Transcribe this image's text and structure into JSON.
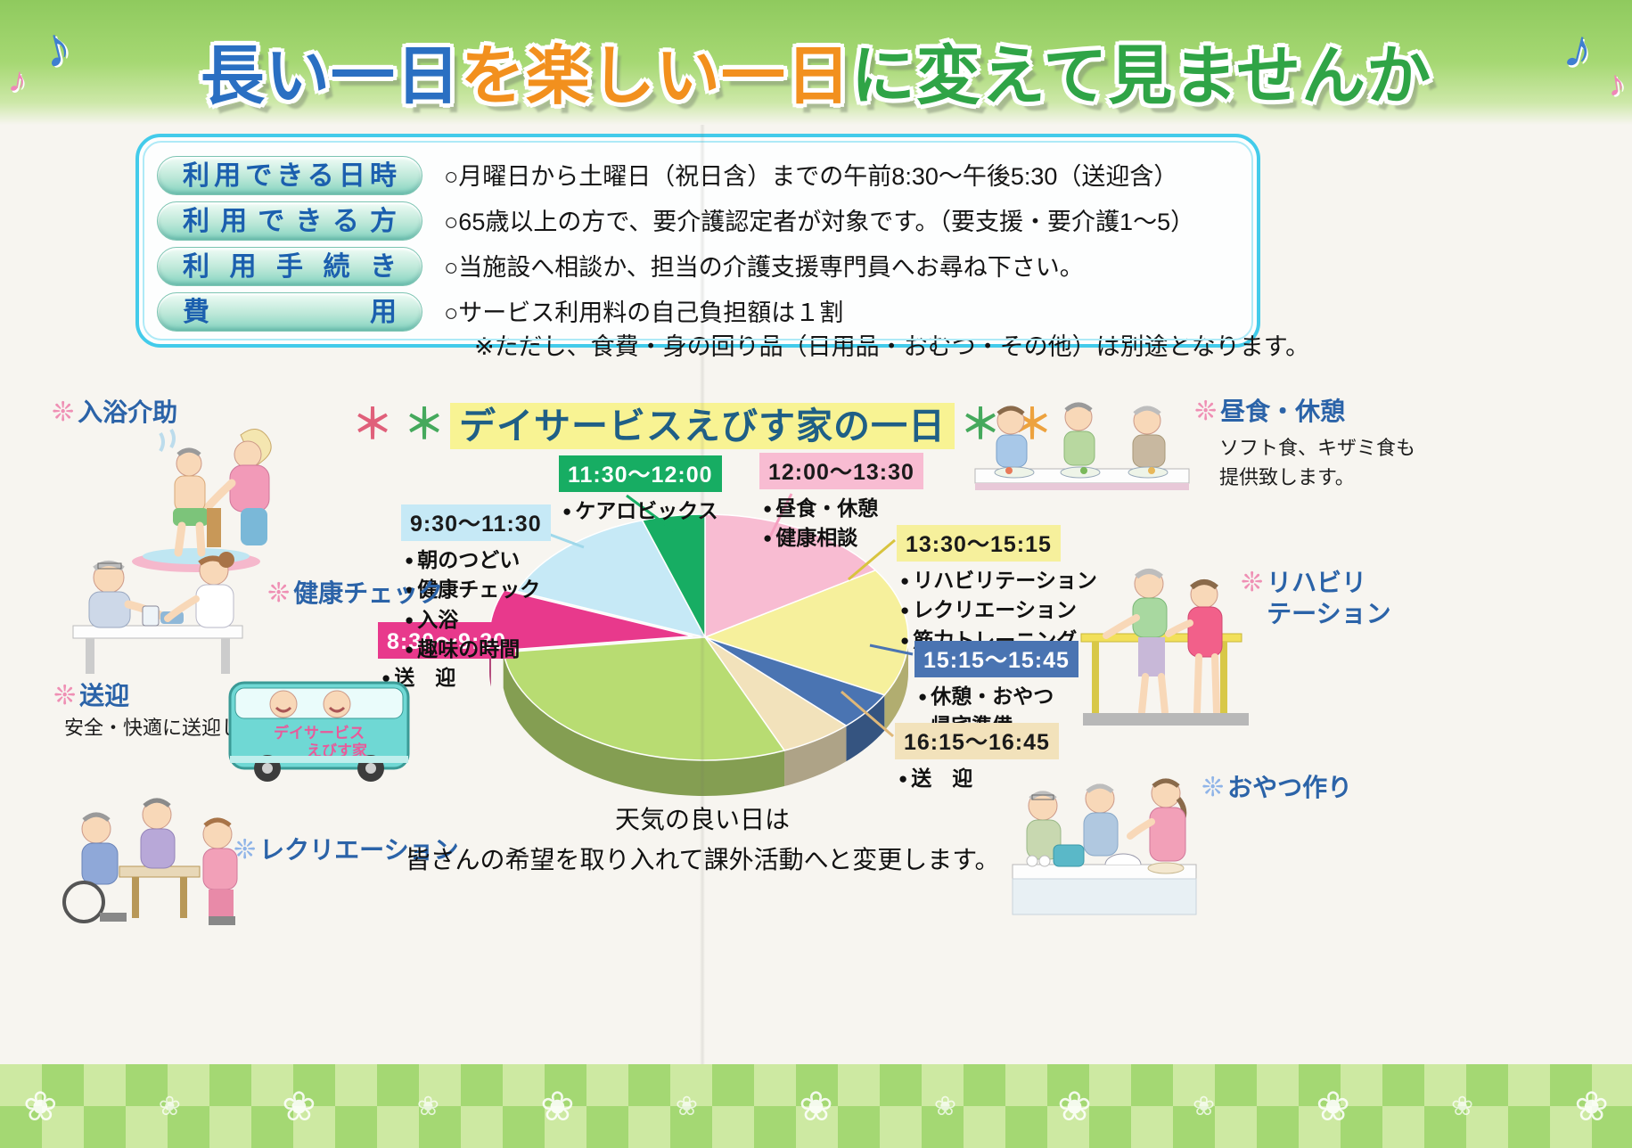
{
  "banner": {
    "segments": [
      {
        "text": "長い一日",
        "color": "#2a6fc2"
      },
      {
        "text": "を楽しい一日",
        "color": "#f2901e"
      },
      {
        "text": "に変えて見ませんか",
        "color": "#2fa446"
      }
    ],
    "notes": [
      {
        "glyph": "♪",
        "color": "#3f7fd0"
      },
      {
        "glyph": "♪",
        "color": "#ef86b8"
      },
      {
        "glyph": "♪",
        "color": "#3f7fd0"
      },
      {
        "glyph": "♪",
        "color": "#ef86b8"
      }
    ]
  },
  "info_box": {
    "rows": [
      {
        "label": "利用できる日時",
        "lines": [
          "○月曜日から土曜日（祝日含）までの午前8:30～午後5:30（送迎含）"
        ]
      },
      {
        "label": "利用できる方",
        "lines": [
          "○65歳以上の方で、要介護認定者が対象です。（要支援・要介護1～5）"
        ]
      },
      {
        "label": "利用手続き",
        "lines": [
          "○当施設へ相談か、担当の介護支援専門員へお尋ね下さい。"
        ]
      },
      {
        "label": "費用",
        "lines": [
          "○サービス利用料の自己負担額は１割",
          "※ただし、食費・身の回り品（日用品・おむつ・その他）は別途となります。"
        ]
      }
    ]
  },
  "main_title": {
    "asterisks_left": [
      {
        "glyph": "＊",
        "color": "#e0607a"
      },
      {
        "glyph": "＊",
        "color": "#45a95c"
      }
    ],
    "text": "デイサービスえびす家の一日",
    "asterisks_right": [
      {
        "glyph": "＊",
        "color": "#45a95c"
      },
      {
        "glyph": "＊",
        "color": "#eda23e"
      }
    ],
    "highlight": "#f8f393",
    "color": "#1f5f86"
  },
  "chart_data": {
    "type": "pie",
    "title": "デイサービスえびす家の一日",
    "legend_position": "around",
    "slices": [
      {
        "time": "12:00～13:30",
        "activities": [
          "昼食・休憩",
          "健康相談"
        ],
        "color": "#f8bcd2",
        "label_color": "#1a1a1a",
        "start": 0,
        "end": 57
      },
      {
        "time": "13:30～15:15",
        "activities": [
          "リハビリテーション",
          "レクリエーション",
          "筋力トレーニング"
        ],
        "color": "#f6f09c",
        "label_color": "#1a1a1a",
        "start": 57,
        "end": 118
      },
      {
        "time": "15:15～15:45",
        "activities": [
          "休憩・おやつ",
          "帰宅準備"
        ],
        "color": "#4a74b2",
        "label_color": "#ffffff",
        "start": 118,
        "end": 136
      },
      {
        "time": "16:15～16:45",
        "activities": [
          "送　迎"
        ],
        "color": "#f2e2bb",
        "label_color": "#1a1a1a",
        "start": 136,
        "end": 157
      },
      {
        "time": "",
        "activities": [],
        "color": "#b8dc72",
        "label_color": "#1a1a1a",
        "start": 157,
        "end": 263
      },
      {
        "time": "8:30～9:30",
        "activities": [
          "送　迎"
        ],
        "color": "#e8398c",
        "label_color": "#ffffff",
        "start": 263,
        "end": 292,
        "offset": 14
      },
      {
        "time": "9:30～11:30",
        "activities": [
          "朝のつどい",
          "健康チェック",
          "入浴",
          "趣味の時間"
        ],
        "color": "#c6e9f6",
        "label_color": "#1a1a1a",
        "start": 292,
        "end": 342
      },
      {
        "time": "11:30～12:00",
        "activities": [
          "ケアロビックス"
        ],
        "color": "#17ad63",
        "label_color": "#ffffff",
        "start": 342,
        "end": 360
      }
    ]
  },
  "features": [
    {
      "label": "入浴介助",
      "flower": "❊",
      "flower_color": "#ef8fb4"
    },
    {
      "label": "健康チェック",
      "flower": "❊",
      "flower_color": "#ef8fb4"
    },
    {
      "label": "送迎",
      "desc": "安全・快適に送迎します。",
      "flower": "❊",
      "flower_color": "#ef8fb4",
      "bus_line1": "デイサービス",
      "bus_line2": "えびす家"
    },
    {
      "label": "レクリエーション",
      "flower": "❊",
      "flower_color": "#8fb4e8"
    },
    {
      "label": "昼食・休憩",
      "desc": "ソフト食、キザミ食も\n提供致します。",
      "flower": "❊",
      "flower_color": "#ef8fb4"
    },
    {
      "label": "リハビリ\nテーション",
      "flower": "❊",
      "flower_color": "#ef8fb4"
    },
    {
      "label": "おやつ作り",
      "flower": "❊",
      "flower_color": "#8fb4e8"
    }
  ],
  "footer": {
    "weather_note": "天気の良い日は\n皆さんの希望を取り入れて課外活動へと変更します。",
    "flower_glyph": "❀",
    "flower_count": 13
  }
}
